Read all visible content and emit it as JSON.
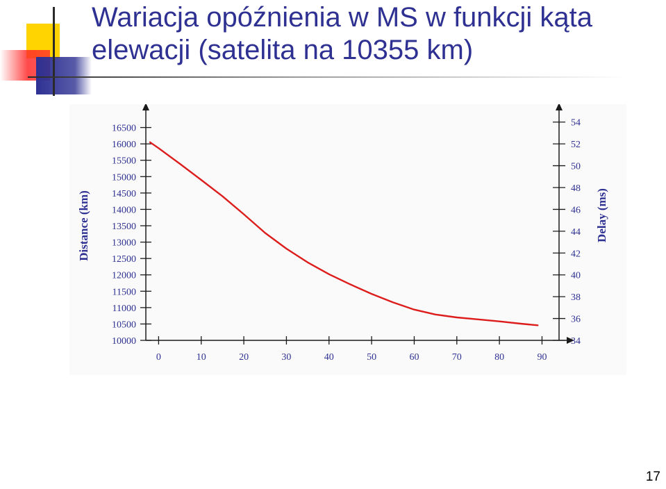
{
  "slide": {
    "title_lines": [
      "Wariacja opóźnienia w MS w funkcji kąta",
      "elewacji (satelita na  10355 km)"
    ],
    "page_number": "17",
    "colors": {
      "title": "#2e3192",
      "logo_yellow": "#ffd400",
      "logo_red": "#ff2020",
      "logo_blue": "#2e3192"
    }
  },
  "chart_data": {
    "type": "line",
    "title": "",
    "xlabel": "",
    "ylabel": "Distance (km)",
    "y2label": "Delay (ms)",
    "x_ticks": [
      0,
      10,
      20,
      30,
      40,
      50,
      60,
      70,
      80,
      90
    ],
    "y_ticks": [
      10000,
      10500,
      11000,
      11500,
      12000,
      12500,
      13000,
      13500,
      14000,
      14500,
      15000,
      15500,
      16000,
      16500
    ],
    "y2_ticks": [
      34,
      36,
      38,
      40,
      42,
      44,
      46,
      48,
      50,
      52,
      54
    ],
    "xlim": [
      -3,
      94
    ],
    "ylim": [
      10000,
      17000
    ],
    "y2lim": [
      34,
      55
    ],
    "grid": false,
    "line_color": "#dd1c1c",
    "axis_color": "#1a1a1a",
    "label_color": "#2e3192",
    "series": [
      {
        "x": [
          -2,
          0,
          5,
          10,
          15,
          20,
          25,
          30,
          35,
          40,
          45,
          50,
          55,
          60,
          65,
          70,
          75,
          80,
          85,
          89
        ],
        "y": [
          16050,
          15870,
          15390,
          14900,
          14400,
          13850,
          13280,
          12800,
          12380,
          12020,
          11710,
          11420,
          11160,
          10940,
          10790,
          10700,
          10640,
          10580,
          10510,
          10460
        ]
      }
    ]
  }
}
